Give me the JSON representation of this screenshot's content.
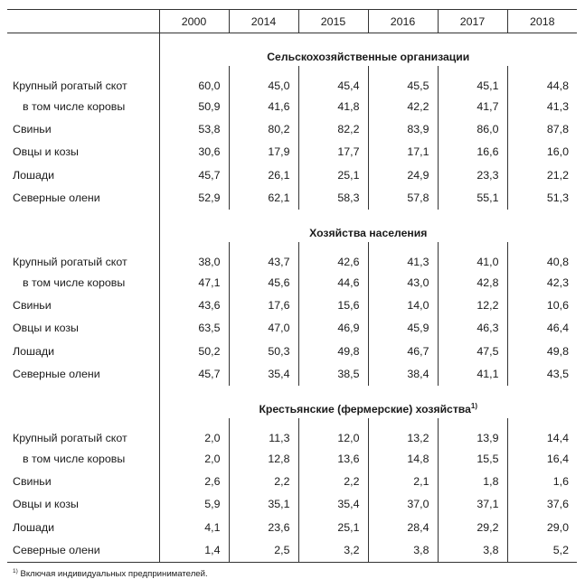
{
  "table": {
    "columns": [
      "",
      "2000",
      "2014",
      "2015",
      "2016",
      "2017",
      "2018"
    ],
    "sections": [
      {
        "title": "Сельскохозяйственные организации",
        "title_note": "",
        "rows": [
          {
            "label": "Крупный рогатый скот",
            "values": [
              "60,0",
              "45,0",
              "45,4",
              "45,5",
              "45,1",
              "44,8"
            ]
          },
          {
            "label": "в том числе коровы",
            "values": [
              "50,9",
              "41,6",
              "41,8",
              "42,2",
              "41,7",
              "41,3"
            ]
          },
          {
            "label": "Свиньи",
            "values": [
              "53,8",
              "80,2",
              "82,2",
              "83,9",
              "86,0",
              "87,8"
            ]
          },
          {
            "label": "Овцы и козы",
            "values": [
              "30,6",
              "17,9",
              "17,7",
              "17,1",
              "16,6",
              "16,0"
            ]
          },
          {
            "label": "Лошади",
            "values": [
              "45,7",
              "26,1",
              "25,1",
              "24,9",
              "23,3",
              "21,2"
            ]
          },
          {
            "label": "Северные олени",
            "values": [
              "52,9",
              "62,1",
              "58,3",
              "57,8",
              "55,1",
              "51,3"
            ]
          }
        ]
      },
      {
        "title": "Хозяйства населения",
        "title_note": "",
        "rows": [
          {
            "label": "Крупный рогатый скот",
            "values": [
              "38,0",
              "43,7",
              "42,6",
              "41,3",
              "41,0",
              "40,8"
            ]
          },
          {
            "label": "в том числе коровы",
            "values": [
              "47,1",
              "45,6",
              "44,6",
              "43,0",
              "42,8",
              "42,3"
            ]
          },
          {
            "label": "Свиньи",
            "values": [
              "43,6",
              "17,6",
              "15,6",
              "14,0",
              "12,2",
              "10,6"
            ]
          },
          {
            "label": "Овцы и козы",
            "values": [
              "63,5",
              "47,0",
              "46,9",
              "45,9",
              "46,3",
              "46,4"
            ]
          },
          {
            "label": "Лошади",
            "values": [
              "50,2",
              "50,3",
              "49,8",
              "46,7",
              "47,5",
              "49,8"
            ]
          },
          {
            "label": "Северные олени",
            "values": [
              "45,7",
              "35,4",
              "38,5",
              "38,4",
              "41,1",
              "43,5"
            ]
          }
        ]
      },
      {
        "title": "Крестьянские (фермерские) хозяйства",
        "title_note": "1)",
        "rows": [
          {
            "label": "Крупный рогатый скот",
            "values": [
              "2,0",
              "11,3",
              "12,0",
              "13,2",
              "13,9",
              "14,4"
            ]
          },
          {
            "label": "в том числе коровы",
            "values": [
              "2,0",
              "12,8",
              "13,6",
              "14,8",
              "15,5",
              "16,4"
            ]
          },
          {
            "label": "Свиньи",
            "values": [
              "2,6",
              "2,2",
              "2,2",
              "2,1",
              "1,8",
              "1,6"
            ]
          },
          {
            "label": "Овцы и козы",
            "values": [
              "5,9",
              "35,1",
              "35,4",
              "37,0",
              "37,1",
              "37,6"
            ]
          },
          {
            "label": "Лошади",
            "values": [
              "4,1",
              "23,6",
              "25,1",
              "28,4",
              "29,2",
              "29,0"
            ]
          },
          {
            "label": "Северные олени",
            "values": [
              "1,4",
              "2,5",
              "3,2",
              "3,8",
              "3,8",
              "5,2"
            ]
          }
        ]
      }
    ]
  },
  "footnote": {
    "mark": "1)",
    "text": "Включая индивидуальных предпринимателей."
  }
}
